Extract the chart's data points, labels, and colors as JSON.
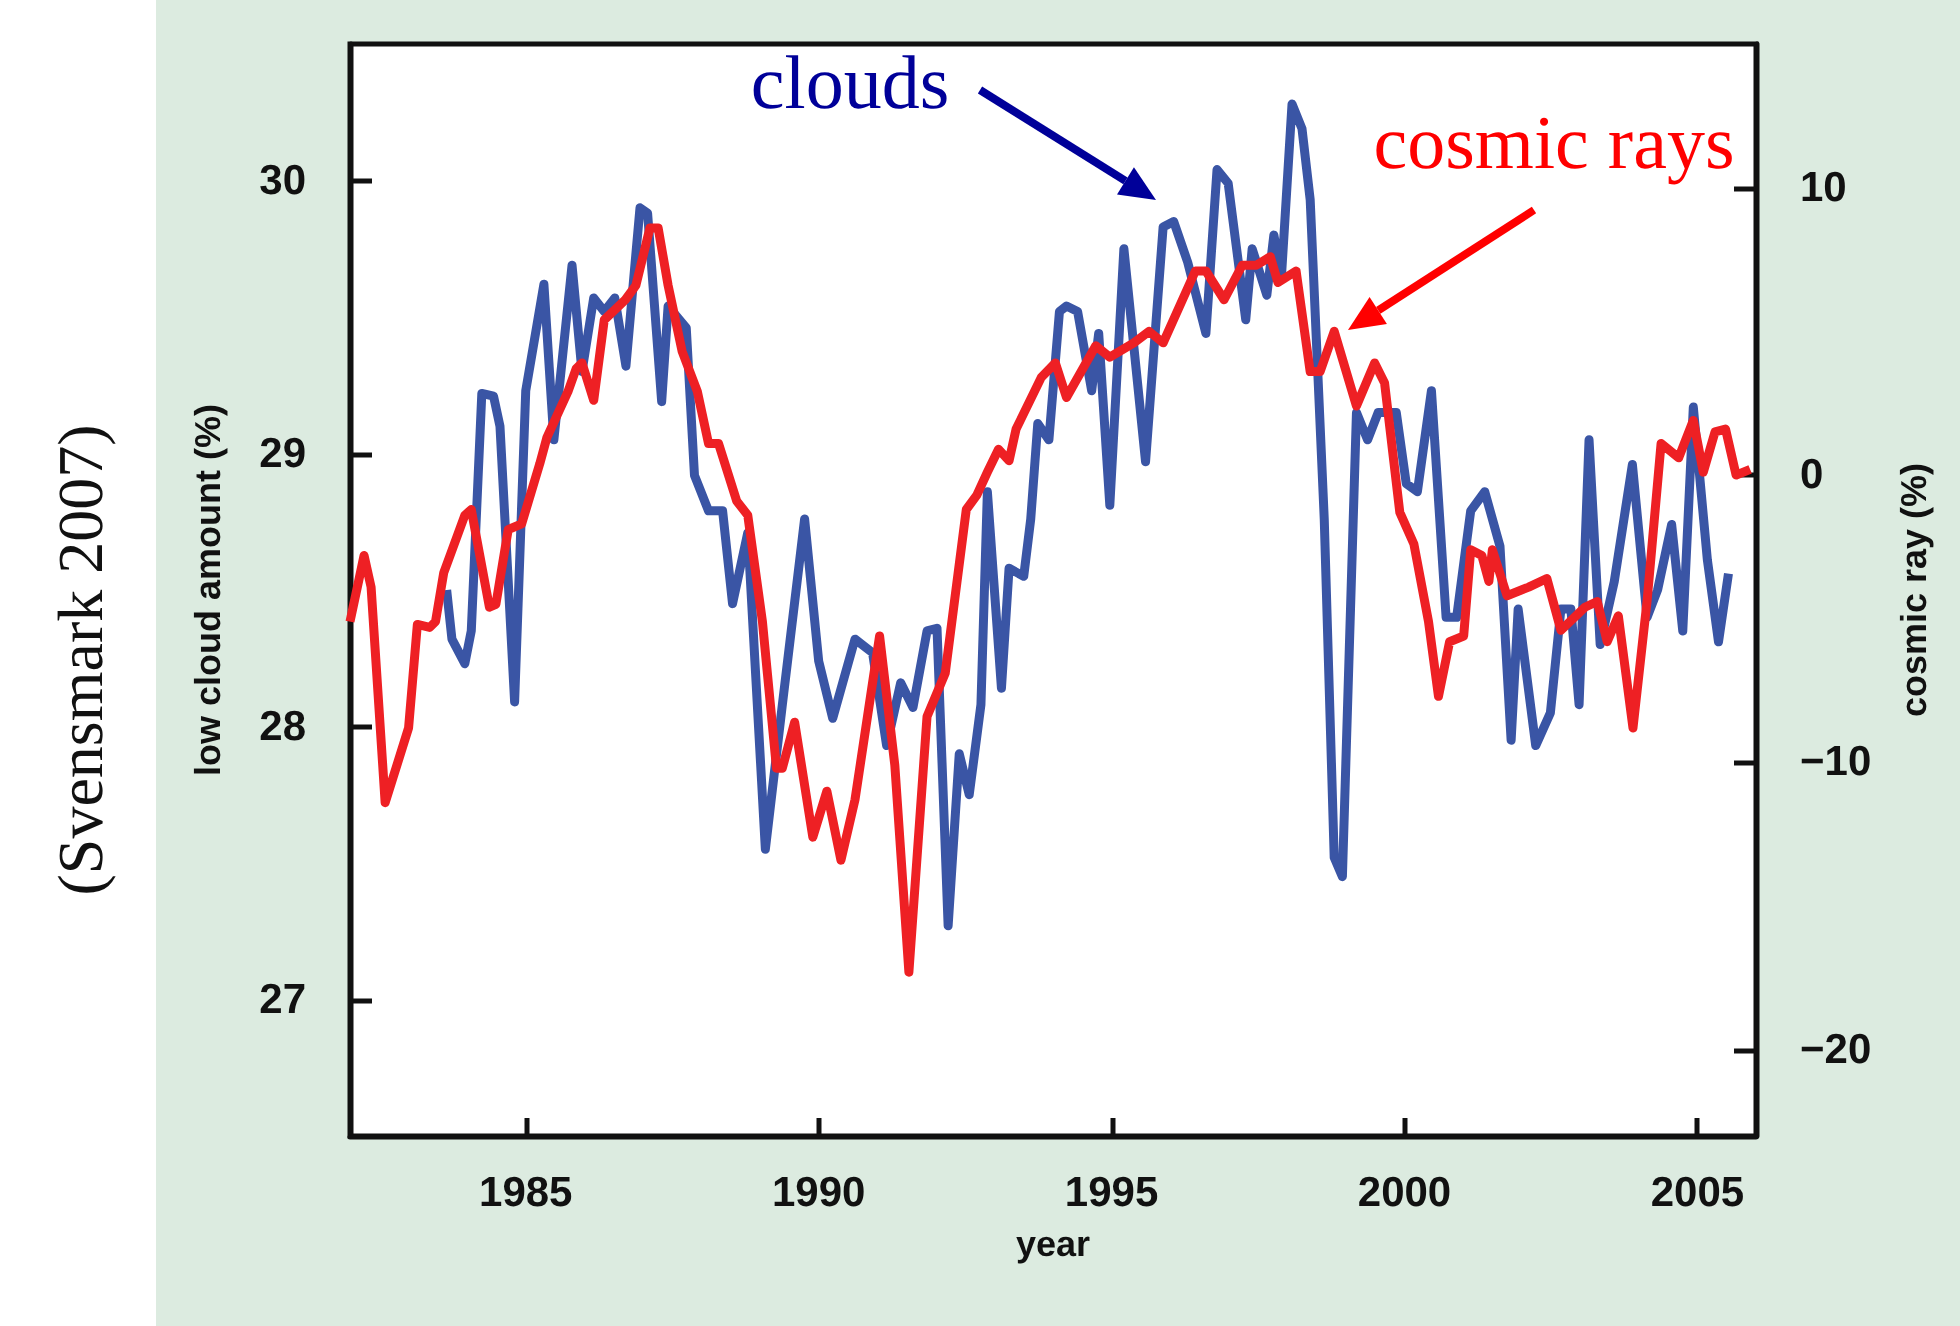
{
  "chart_data": {
    "type": "line",
    "xlabel": "year",
    "ylabel": "low cloud amount (%)",
    "y2label": "cosmic ray (%)",
    "xlim": [
      1982,
      2006
    ],
    "xticks": [
      1985,
      1990,
      1995,
      2000,
      2005
    ],
    "ylim": [
      26.5,
      30.5
    ],
    "yticks": [
      27,
      28,
      29,
      30
    ],
    "y2lim": [
      -23,
      15
    ],
    "y2ticks": [
      {
        "value": -20,
        "label": "−20"
      },
      {
        "value": -10,
        "label": "−10"
      },
      0,
      10
    ],
    "grid": false,
    "marker": "none",
    "line_style": "solid",
    "series": [
      {
        "color": "#3a55a5",
        "x": [
          1983.65,
          1983.74,
          1983.96,
          1984.07,
          1984.25,
          1984.45,
          1984.56,
          1984.81,
          1985.0,
          1985.31,
          1985.48,
          1985.79,
          1985.96,
          1986.16,
          1986.34,
          1986.52,
          1986.71,
          1986.95,
          1987.08,
          1987.32,
          1987.43,
          1987.74,
          1987.88,
          1988.12,
          1988.36,
          1988.53,
          1988.79,
          1989.09,
          1989.38,
          1989.76,
          1990.0,
          1990.24,
          1990.62,
          1990.92,
          1991.16,
          1991.4,
          1991.61,
          1991.85,
          1992.02,
          1992.21,
          1992.4,
          1992.57,
          1992.77,
          1992.88,
          1993.12,
          1993.25,
          1993.5,
          1993.62,
          1993.74,
          1993.93,
          1994.11,
          1994.23,
          1994.42,
          1994.66,
          1994.78,
          1994.97,
          1995.21,
          1995.58,
          1995.88,
          1996.06,
          1996.3,
          1996.61,
          1996.8,
          1996.99,
          1997.29,
          1997.4,
          1997.65,
          1997.77,
          1997.9,
          1998.08,
          1998.25,
          1998.39,
          1998.63,
          1998.8,
          1998.94,
          1999.18,
          1999.37,
          1999.55,
          1999.86,
          2000.03,
          2000.22,
          2000.46,
          2000.71,
          2000.89,
          2001.13,
          2001.37,
          2001.63,
          2001.82,
          2001.94,
          2002.24,
          2002.49,
          2002.67,
          2002.84,
          2002.98,
          2003.15,
          2003.34,
          2003.58,
          2003.89,
          2004.14,
          2004.32,
          2004.56,
          2004.75,
          2004.93,
          2005.17,
          2005.36,
          2005.53
        ],
        "values": [
          28.5,
          28.32,
          28.23,
          28.35,
          29.22,
          29.21,
          29.1,
          28.09,
          29.23,
          29.62,
          29.05,
          29.69,
          29.3,
          29.57,
          29.52,
          29.57,
          29.32,
          29.9,
          29.88,
          29.19,
          29.54,
          29.46,
          28.92,
          28.79,
          28.79,
          28.45,
          28.71,
          27.55,
          28.08,
          28.76,
          28.24,
          28.03,
          28.32,
          28.27,
          27.93,
          28.16,
          28.07,
          28.35,
          28.36,
          27.27,
          27.9,
          27.75,
          28.08,
          28.86,
          28.14,
          28.58,
          28.55,
          28.76,
          29.11,
          29.05,
          29.52,
          29.54,
          29.52,
          29.23,
          29.44,
          28.81,
          29.75,
          28.97,
          29.83,
          29.85,
          29.7,
          29.44,
          30.04,
          29.99,
          29.49,
          29.75,
          29.58,
          29.8,
          29.65,
          30.28,
          30.19,
          29.93,
          28.76,
          27.52,
          27.45,
          29.15,
          29.05,
          29.15,
          29.15,
          28.89,
          28.86,
          29.23,
          28.4,
          28.4,
          28.79,
          28.86,
          28.66,
          27.95,
          28.43,
          27.93,
          28.05,
          28.43,
          28.43,
          28.08,
          29.05,
          28.3,
          28.53,
          28.96,
          28.4,
          28.5,
          28.74,
          28.35,
          29.17,
          28.61,
          28.31,
          28.56
        ]
      },
      {
        "color": "#ee2024",
        "axis": "y2",
        "x": [
          1982.0,
          1982.24,
          1982.36,
          1982.6,
          1983.0,
          1983.15,
          1983.36,
          1983.46,
          1983.6,
          1983.96,
          1984.07,
          1984.38,
          1984.49,
          1984.7,
          1984.93,
          1985.24,
          1985.36,
          1985.72,
          1985.86,
          1985.96,
          1986.16,
          1986.34,
          1986.7,
          1986.88,
          1987.12,
          1987.26,
          1987.43,
          1987.67,
          1987.93,
          1988.12,
          1988.29,
          1988.6,
          1988.79,
          1989.04,
          1989.28,
          1989.38,
          1989.59,
          1989.9,
          1990.14,
          1990.38,
          1990.62,
          1991.04,
          1991.3,
          1991.54,
          1991.85,
          1992.16,
          1992.52,
          1992.7,
          1992.88,
          1993.07,
          1993.25,
          1993.37,
          1993.8,
          1994.04,
          1994.23,
          1994.73,
          1994.97,
          1995.38,
          1995.64,
          1995.88,
          1996.43,
          1996.61,
          1996.92,
          1997.23,
          1997.47,
          1997.71,
          1997.84,
          1998.15,
          1998.39,
          1998.56,
          1998.8,
          1999.18,
          1999.49,
          1999.66,
          1999.92,
          2000.16,
          2000.41,
          2000.58,
          2000.77,
          2001.01,
          2001.13,
          2001.32,
          2001.44,
          2001.5,
          2001.75,
          2002.12,
          2002.43,
          2002.67,
          2003.08,
          2003.29,
          2003.46,
          2003.65,
          2003.9,
          2004.14,
          2004.38,
          2004.68,
          2004.93,
          2005.1,
          2005.3,
          2005.48,
          2005.66,
          2005.9
        ],
        "values": [
          -5.1,
          -2.8,
          -3.9,
          -11.4,
          -8.8,
          -5.2,
          -5.3,
          -5.1,
          -3.4,
          -1.4,
          -1.2,
          -4.6,
          -4.5,
          -1.9,
          -1.7,
          0.4,
          1.3,
          2.9,
          3.7,
          3.9,
          2.6,
          5.4,
          6.1,
          6.6,
          8.6,
          8.6,
          6.6,
          4.3,
          2.9,
          1.1,
          1.1,
          -0.9,
          -1.4,
          -5.1,
          -10.2,
          -10.2,
          -8.6,
          -12.6,
          -11.0,
          -13.4,
          -11.3,
          -5.6,
          -10.1,
          -17.3,
          -8.4,
          -6.9,
          -1.2,
          -0.7,
          0.1,
          0.9,
          0.5,
          1.6,
          3.4,
          3.9,
          2.7,
          4.5,
          4.1,
          4.6,
          5.0,
          4.6,
          7.1,
          7.1,
          6.1,
          7.3,
          7.3,
          7.6,
          6.7,
          7.1,
          3.6,
          3.6,
          5.0,
          2.4,
          3.9,
          3.2,
          -1.3,
          -2.4,
          -5.1,
          -7.7,
          -5.8,
          -5.6,
          -2.6,
          -2.8,
          -3.7,
          -2.6,
          -4.2,
          -3.9,
          -3.6,
          -5.4,
          -4.6,
          -4.4,
          -5.8,
          -4.9,
          -8.8,
          -4.4,
          1.1,
          0.6,
          1.9,
          0.1,
          1.5,
          1.6,
          0.0,
          0.2
        ]
      }
    ],
    "annotations": [
      "(Svensmark 2007)",
      "clouds",
      "cosmic rays"
    ]
  }
}
